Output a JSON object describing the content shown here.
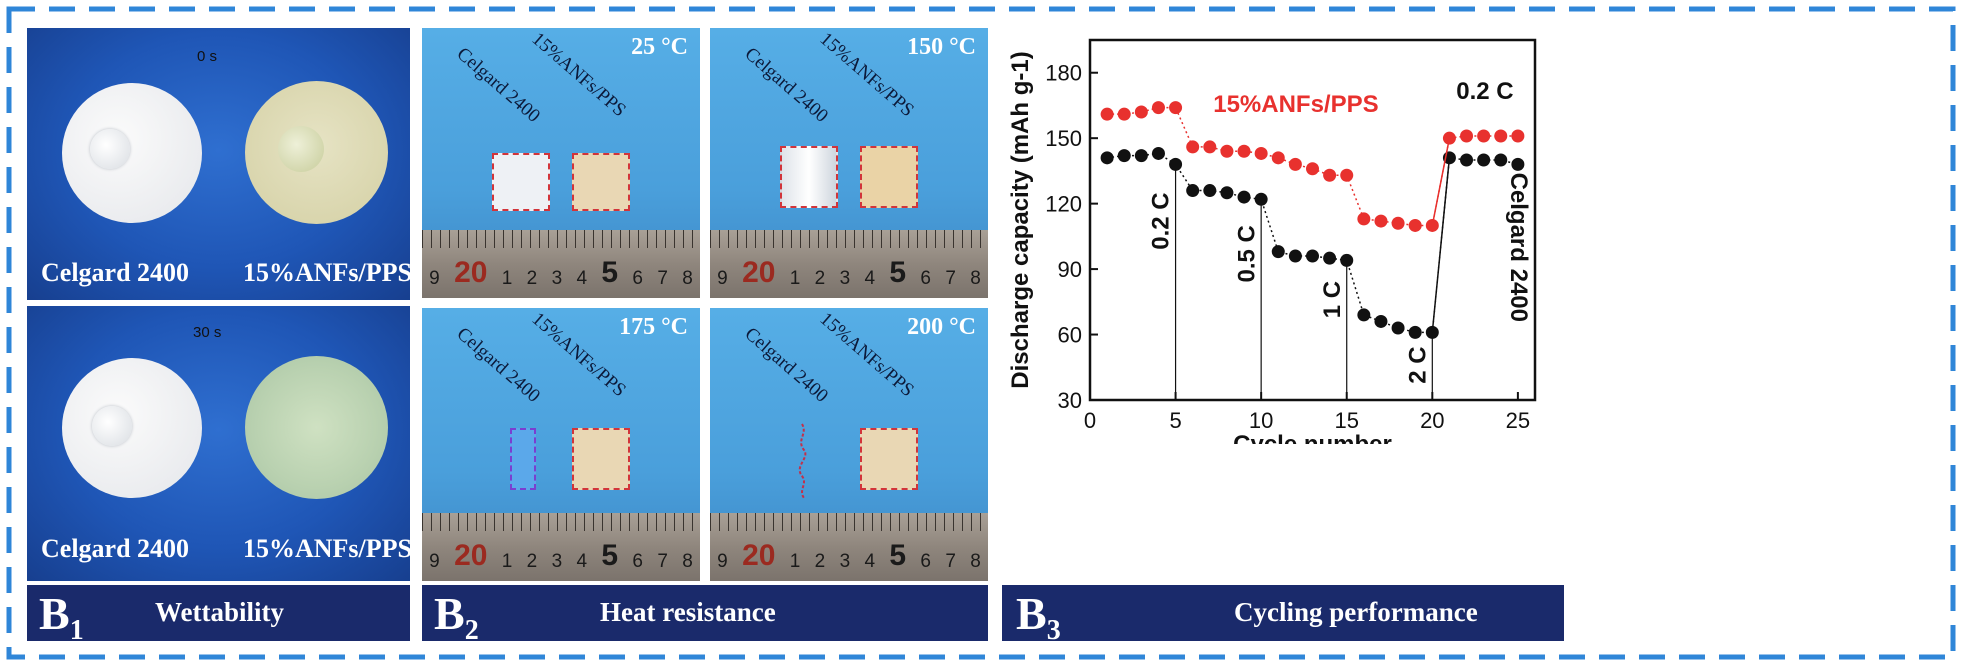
{
  "panels": {
    "b1": {
      "code": "B",
      "sub": "1",
      "title": "Wettability",
      "rows": [
        {
          "time": "0 s",
          "left_label": "Celgard 2400",
          "right_label": "15%ANFs/PPS"
        },
        {
          "time": "30 s",
          "left_label": "Celgard 2400",
          "right_label": "15%ANFs/PPS"
        }
      ]
    },
    "b2": {
      "code": "B",
      "sub": "2",
      "title": "Heat resistance",
      "sample_left": "Celgard 2400",
      "sample_right": "15%ANFs/PPS",
      "ruler": [
        "9",
        "20",
        "1",
        "2",
        "3",
        "4",
        "5",
        "6",
        "7",
        "8"
      ],
      "photos": [
        {
          "temp": "25 °C"
        },
        {
          "temp": "150 °C"
        },
        {
          "temp": "175 °C"
        },
        {
          "temp": "200 °C"
        }
      ]
    },
    "b3": {
      "code": "B",
      "sub": "3",
      "title": "Cycling performance"
    }
  },
  "colors": {
    "banner": "#1a2a6b",
    "frame_dash": "#2f86d8",
    "series_anf": "#e8312e",
    "series_celgard": "#111111"
  },
  "chart_data": {
    "type": "scatter",
    "xlabel": "Cycle number",
    "ylabel": "Discharge capacity (mAh g-1)",
    "xlim": [
      0,
      26
    ],
    "ylim": [
      30,
      195
    ],
    "xticks": [
      0,
      5,
      10,
      15,
      20,
      25
    ],
    "yticks": [
      30,
      60,
      90,
      120,
      150,
      180
    ],
    "series": [
      {
        "name": "15%ANFs/PPS",
        "x": [
          1,
          2,
          3,
          4,
          5,
          6,
          7,
          8,
          9,
          10,
          11,
          12,
          13,
          14,
          15,
          16,
          17,
          18,
          19,
          20,
          21,
          22,
          23,
          24,
          25
        ],
        "y": [
          161,
          161,
          162,
          164,
          164,
          146,
          146,
          144,
          144,
          143,
          141,
          138,
          136,
          133,
          133,
          113,
          112,
          111,
          110,
          110,
          150,
          151,
          151,
          151,
          151
        ]
      },
      {
        "name": "Celgard 2400",
        "x": [
          1,
          2,
          3,
          4,
          5,
          6,
          7,
          8,
          9,
          10,
          11,
          12,
          13,
          14,
          15,
          16,
          17,
          18,
          19,
          20,
          21,
          22,
          23,
          24,
          25
        ],
        "y": [
          141,
          142,
          142,
          143,
          138,
          126,
          126,
          125,
          123,
          122,
          98,
          96,
          96,
          95,
          94,
          69,
          66,
          63,
          61,
          61,
          141,
          140,
          140,
          140,
          138
        ]
      }
    ],
    "annotations": [
      {
        "text": "0.2 C",
        "at_cycle": 5
      },
      {
        "text": "0.5 C",
        "at_cycle": 10
      },
      {
        "text": "1 C",
        "at_cycle": 15
      },
      {
        "text": "2 C",
        "at_cycle": 20
      },
      {
        "text": "0.2 C",
        "at_cycle": 23
      }
    ]
  }
}
